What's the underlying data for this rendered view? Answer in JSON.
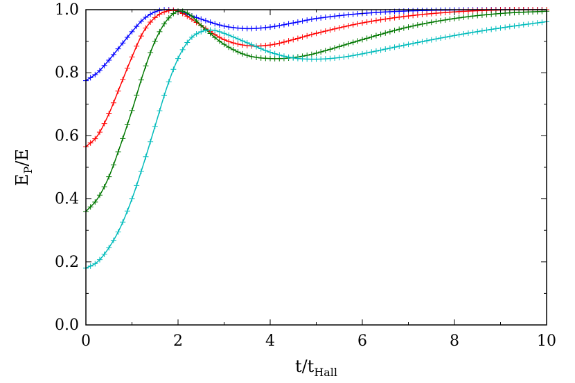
{
  "chart_data": {
    "type": "line",
    "xlabel_main": "t/t",
    "xlabel_sub": "Hall",
    "ylabel_main": "E",
    "ylabel_sub": "P",
    "ylabel_tail": "/E",
    "xlim": [
      0,
      10
    ],
    "ylim": [
      0,
      1
    ],
    "x_ticks": [
      0,
      2,
      4,
      6,
      8,
      10
    ],
    "x_tick_labels": [
      "0",
      "2",
      "4",
      "6",
      "8",
      "10"
    ],
    "y_ticks": [
      0,
      0.2,
      0.4,
      0.6,
      0.8,
      1.0
    ],
    "y_tick_labels": [
      "0.0",
      "0.2",
      "0.4",
      "0.6",
      "0.8",
      "1.0"
    ],
    "grid": false,
    "markers": "plus",
    "series": [
      {
        "color": "#0000ff",
        "x": [
          0,
          0.25,
          0.5,
          0.75,
          1.0,
          1.25,
          1.5,
          1.75,
          2.0,
          2.5,
          3.0,
          3.5,
          4.0,
          4.5,
          5.0,
          6.0,
          7.0,
          8.0,
          9.0,
          10.0
        ],
        "y": [
          0.775,
          0.8,
          0.84,
          0.885,
          0.93,
          0.97,
          0.993,
          1.0,
          0.995,
          0.97,
          0.948,
          0.94,
          0.945,
          0.958,
          0.972,
          0.988,
          0.996,
          0.999,
          1.0,
          1.0
        ]
      },
      {
        "color": "#ff0000",
        "x": [
          0,
          0.25,
          0.5,
          0.75,
          1.0,
          1.25,
          1.5,
          1.75,
          2.0,
          2.5,
          3.0,
          3.5,
          4.0,
          4.5,
          5.0,
          6.0,
          7.0,
          8.0,
          9.0,
          10.0
        ],
        "y": [
          0.565,
          0.6,
          0.67,
          0.76,
          0.85,
          0.93,
          0.975,
          0.995,
          0.995,
          0.95,
          0.905,
          0.886,
          0.888,
          0.905,
          0.925,
          0.958,
          0.98,
          0.993,
          0.999,
          1.0
        ]
      },
      {
        "color": "#007700",
        "x": [
          0,
          0.25,
          0.5,
          0.75,
          1.0,
          1.25,
          1.5,
          1.75,
          2.0,
          2.25,
          2.5,
          3.0,
          3.5,
          4.0,
          4.5,
          5.0,
          6.0,
          7.0,
          8.0,
          9.0,
          10.0
        ],
        "y": [
          0.36,
          0.4,
          0.47,
          0.57,
          0.68,
          0.8,
          0.9,
          0.965,
          0.995,
          0.985,
          0.95,
          0.89,
          0.855,
          0.845,
          0.848,
          0.862,
          0.905,
          0.945,
          0.972,
          0.988,
          0.995
        ]
      },
      {
        "color": "#00bbbb",
        "x": [
          0,
          0.25,
          0.5,
          0.75,
          1.0,
          1.25,
          1.5,
          1.75,
          2.0,
          2.25,
          2.5,
          2.75,
          3.0,
          3.5,
          4.0,
          4.5,
          5.0,
          5.5,
          6.0,
          7.0,
          8.0,
          9.0,
          10.0
        ],
        "y": [
          0.18,
          0.2,
          0.245,
          0.31,
          0.4,
          0.51,
          0.63,
          0.75,
          0.845,
          0.905,
          0.93,
          0.935,
          0.925,
          0.895,
          0.865,
          0.847,
          0.843,
          0.848,
          0.86,
          0.89,
          0.918,
          0.942,
          0.962
        ]
      }
    ]
  }
}
